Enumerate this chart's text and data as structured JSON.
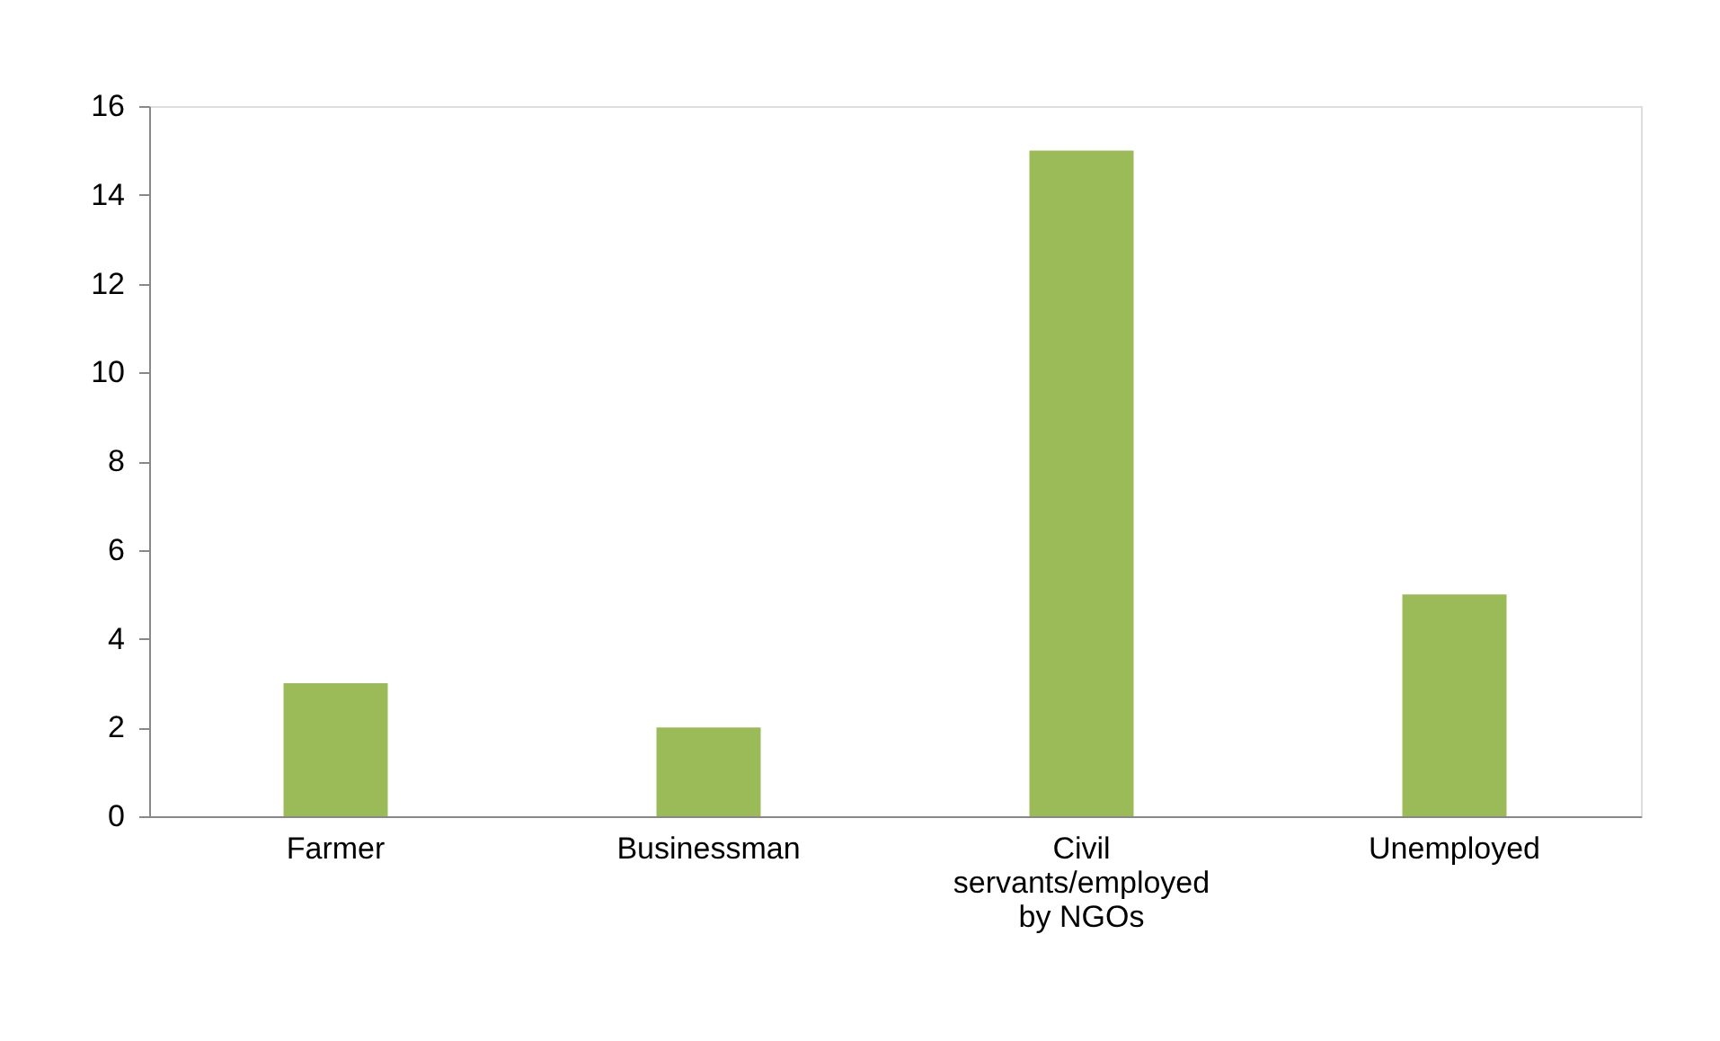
{
  "chart_data": {
    "type": "bar",
    "categories": [
      "Farmer",
      "Businessman",
      "Civil servants/employed by NGOs",
      "Unemployed"
    ],
    "values": [
      3,
      2,
      15,
      5
    ],
    "color": "#9bbb59",
    "ylim": [
      0,
      16
    ],
    "yticks": [
      0,
      2,
      4,
      6,
      8,
      10,
      12,
      14,
      16
    ],
    "grid": false
  }
}
